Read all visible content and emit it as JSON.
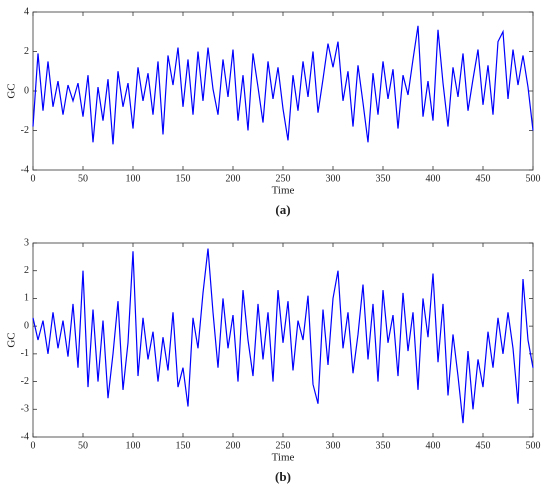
{
  "chart_data": [
    {
      "type": "line",
      "xlabel": "Time",
      "ylabel": "GC",
      "caption": "(a)",
      "color": "#0000ff",
      "xlim": [
        0,
        500
      ],
      "xticks": [
        0,
        50,
        100,
        150,
        200,
        250,
        300,
        350,
        400,
        450,
        500
      ],
      "ylim": [
        -4,
        4
      ],
      "yticks": [
        -4,
        -2,
        0,
        2,
        4
      ],
      "x": [
        0,
        5,
        10,
        15,
        20,
        25,
        30,
        35,
        40,
        45,
        50,
        55,
        60,
        65,
        70,
        75,
        80,
        85,
        90,
        95,
        100,
        105,
        110,
        115,
        120,
        125,
        130,
        135,
        140,
        145,
        150,
        155,
        160,
        165,
        170,
        175,
        180,
        185,
        190,
        195,
        200,
        205,
        210,
        215,
        220,
        225,
        230,
        235,
        240,
        245,
        250,
        255,
        260,
        265,
        270,
        275,
        280,
        285,
        290,
        295,
        300,
        305,
        310,
        315,
        320,
        325,
        330,
        335,
        340,
        345,
        350,
        355,
        360,
        365,
        370,
        375,
        380,
        385,
        390,
        395,
        400,
        405,
        410,
        415,
        420,
        425,
        430,
        435,
        440,
        445,
        450,
        455,
        460,
        465,
        470,
        475,
        480,
        485,
        490,
        495,
        500
      ],
      "values": [
        -1.8,
        1.9,
        -1.0,
        1.5,
        -0.8,
        0.5,
        -1.2,
        0.3,
        -0.5,
        0.4,
        -1.3,
        0.8,
        -2.6,
        0.2,
        -1.5,
        0.6,
        -2.7,
        1.0,
        -0.8,
        0.4,
        -1.9,
        1.2,
        -0.5,
        0.9,
        -1.2,
        1.5,
        -2.2,
        1.8,
        0.3,
        2.2,
        -0.8,
        1.6,
        -1.2,
        2.0,
        -0.5,
        2.2,
        0.1,
        -1.2,
        1.6,
        -0.3,
        2.1,
        -1.5,
        0.8,
        -2.0,
        1.9,
        0.2,
        -1.6,
        1.5,
        -0.4,
        1.2,
        -0.9,
        -2.5,
        0.8,
        -1.0,
        1.5,
        -0.3,
        2.0,
        -1.1,
        0.6,
        2.4,
        1.2,
        2.5,
        -0.5,
        1.0,
        -1.8,
        1.3,
        -0.6,
        -2.6,
        0.9,
        -1.2,
        1.5,
        -0.4,
        1.1,
        -1.9,
        0.8,
        -0.2,
        1.6,
        3.3,
        -1.3,
        0.5,
        -1.5,
        3.1,
        0.4,
        -1.8,
        1.2,
        -0.3,
        1.9,
        -1.0,
        0.6,
        2.1,
        -0.7,
        1.3,
        -1.2,
        2.5,
        3.0,
        -0.4,
        2.1,
        0.3,
        1.8,
        0.2,
        -2.0
      ]
    },
    {
      "type": "line",
      "xlabel": "Time",
      "ylabel": "GC",
      "caption": "(b)",
      "color": "#0000ff",
      "xlim": [
        0,
        500
      ],
      "xticks": [
        0,
        50,
        100,
        150,
        200,
        250,
        300,
        350,
        400,
        450,
        500
      ],
      "ylim": [
        -4,
        3
      ],
      "yticks": [
        -4,
        -3,
        -2,
        -1,
        0,
        1,
        2,
        3
      ],
      "x": [
        0,
        5,
        10,
        15,
        20,
        25,
        30,
        35,
        40,
        45,
        50,
        55,
        60,
        65,
        70,
        75,
        80,
        85,
        90,
        95,
        100,
        105,
        110,
        115,
        120,
        125,
        130,
        135,
        140,
        145,
        150,
        155,
        160,
        165,
        170,
        175,
        180,
        185,
        190,
        195,
        200,
        205,
        210,
        215,
        220,
        225,
        230,
        235,
        240,
        245,
        250,
        255,
        260,
        265,
        270,
        275,
        280,
        285,
        290,
        295,
        300,
        305,
        310,
        315,
        320,
        325,
        330,
        335,
        340,
        345,
        350,
        355,
        360,
        365,
        370,
        375,
        380,
        385,
        390,
        395,
        400,
        405,
        410,
        415,
        420,
        425,
        430,
        435,
        440,
        445,
        450,
        455,
        460,
        465,
        470,
        475,
        480,
        485,
        490,
        495,
        500
      ],
      "values": [
        0.3,
        -0.5,
        0.2,
        -1.0,
        0.5,
        -0.8,
        0.2,
        -1.1,
        0.8,
        -1.5,
        2.0,
        -2.2,
        0.6,
        -2.0,
        0.2,
        -2.6,
        -1.0,
        0.9,
        -2.3,
        -0.6,
        2.7,
        -1.8,
        0.3,
        -1.2,
        -0.2,
        -2.0,
        -0.4,
        -1.6,
        0.5,
        -2.2,
        -1.5,
        -2.9,
        0.3,
        -0.8,
        1.2,
        2.8,
        0.5,
        -1.5,
        1.0,
        -0.8,
        0.4,
        -2.0,
        1.3,
        -0.5,
        -1.8,
        0.8,
        -1.2,
        0.5,
        -2.0,
        1.3,
        -0.6,
        0.9,
        -1.6,
        0.2,
        -0.5,
        1.1,
        -2.1,
        -2.8,
        0.6,
        -1.4,
        1.0,
        2.0,
        -0.8,
        0.5,
        -1.7,
        -0.3,
        1.5,
        -1.2,
        0.8,
        -2.0,
        1.3,
        -0.6,
        0.4,
        -1.8,
        1.2,
        -0.9,
        0.5,
        -2.3,
        1.0,
        -0.4,
        1.9,
        -1.3,
        0.8,
        -2.5,
        -0.3,
        -1.8,
        -3.5,
        -0.9,
        -3.0,
        -1.2,
        -2.2,
        -0.2,
        -1.5,
        0.3,
        -1.0,
        0.5,
        -0.8,
        -2.8,
        1.7,
        -0.5,
        -1.5
      ]
    }
  ]
}
